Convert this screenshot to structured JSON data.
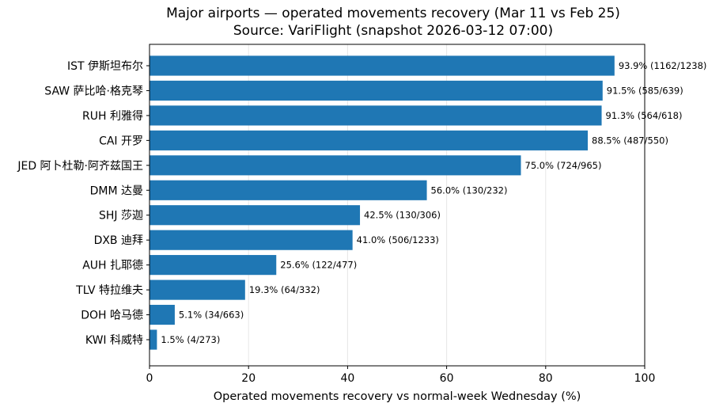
{
  "chart_data": {
    "type": "bar",
    "orientation": "horizontal",
    "title_line1": "Major airports — operated movements recovery (Mar 11 vs Feb 25)",
    "title_line2": "Source: VariFlight (snapshot 2026-03-12 07:00)",
    "xlabel": "Operated movements recovery vs normal-week Wednesday (%)",
    "ylabel": "",
    "xlim": [
      0,
      100
    ],
    "xticks": [
      0,
      20,
      40,
      60,
      80,
      100
    ],
    "grid": "vertical",
    "bar_color": "#1f77b4",
    "categories": [
      "IST 伊斯坦布尔",
      "SAW 萨比哈·格克琴",
      "RUH 利雅得",
      "CAI 开罗",
      "JED 阿卜杜勒·阿齐兹国王",
      "DMM 达曼",
      "SHJ 莎迦",
      "DXB 迪拜",
      "AUH 扎耶德",
      "TLV 特拉维夫",
      "DOH 哈马德",
      "KWI 科威特"
    ],
    "values": [
      93.9,
      91.5,
      91.3,
      88.5,
      75.0,
      56.0,
      42.5,
      41.0,
      25.6,
      19.3,
      5.1,
      1.5
    ],
    "labels": [
      "93.9% (1162/1238)",
      "91.5% (585/639)",
      "91.3% (564/618)",
      "88.5% (487/550)",
      "75.0% (724/965)",
      "56.0% (130/232)",
      "42.5% (130/306)",
      "41.0% (506/1233)",
      "25.6% (122/477)",
      "19.3% (64/332)",
      "5.1% (34/663)",
      "1.5% (4/273)"
    ]
  }
}
